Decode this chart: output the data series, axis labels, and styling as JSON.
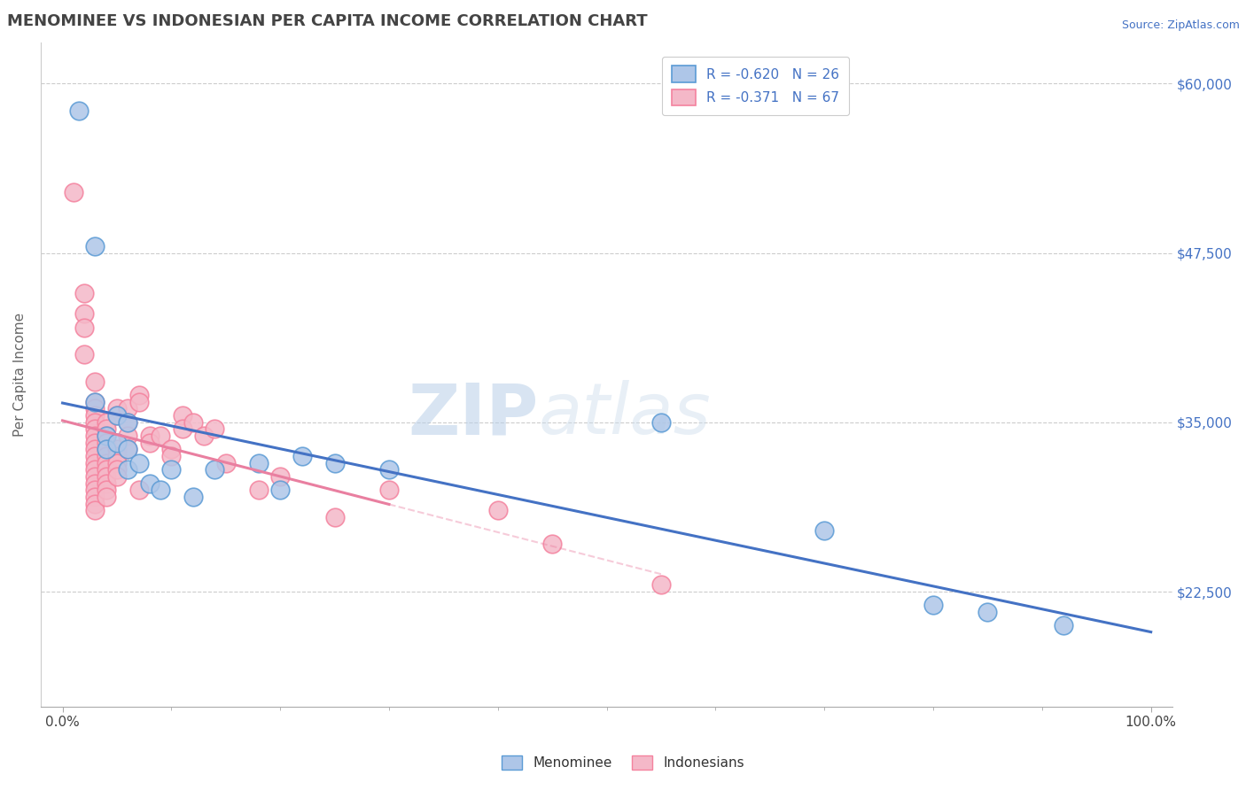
{
  "title": "MENOMINEE VS INDONESIAN PER CAPITA INCOME CORRELATION CHART",
  "source_text": "Source: ZipAtlas.com",
  "ylabel": "Per Capita Income",
  "xlim": [
    -2,
    102
  ],
  "ylim": [
    14000,
    63000
  ],
  "yticks": [
    22500,
    35000,
    47500,
    60000
  ],
  "ytick_labels": [
    "$22,500",
    "$35,000",
    "$47,500",
    "$60,000"
  ],
  "xticks": [
    0,
    100
  ],
  "xtick_labels": [
    "0.0%",
    "100.0%"
  ],
  "legend_entries": [
    {
      "label": "R = -0.620   N = 26",
      "color": "#aec6e8"
    },
    {
      "label": "R = -0.371   N = 67",
      "color": "#f4b8c8"
    }
  ],
  "legend_label_bottom": [
    "Menominee",
    "Indonesians"
  ],
  "watermark_zip": "ZIP",
  "watermark_atlas": "atlas",
  "background_color": "#ffffff",
  "grid_color": "#cccccc",
  "title_color": "#444444",
  "source_color": "#4472c4",
  "menominee_color": "#aec6e8",
  "indonesian_color": "#f4b8c8",
  "menominee_edge": "#5b9bd5",
  "indonesian_edge": "#f4829e",
  "reg_blue": "#4472c4",
  "reg_pink": "#e97fa0",
  "menominee_points": [
    [
      1.5,
      58000
    ],
    [
      3,
      48000
    ],
    [
      3,
      36500
    ],
    [
      4,
      34000
    ],
    [
      4,
      33000
    ],
    [
      5,
      35500
    ],
    [
      5,
      33500
    ],
    [
      6,
      35000
    ],
    [
      6,
      33000
    ],
    [
      6,
      31500
    ],
    [
      7,
      32000
    ],
    [
      8,
      30500
    ],
    [
      9,
      30000
    ],
    [
      10,
      31500
    ],
    [
      12,
      29500
    ],
    [
      14,
      31500
    ],
    [
      18,
      32000
    ],
    [
      20,
      30000
    ],
    [
      22,
      32500
    ],
    [
      25,
      32000
    ],
    [
      30,
      31500
    ],
    [
      55,
      35000
    ],
    [
      70,
      27000
    ],
    [
      80,
      21500
    ],
    [
      85,
      21000
    ],
    [
      92,
      20000
    ]
  ],
  "indonesian_points": [
    [
      1,
      52000
    ],
    [
      2,
      44500
    ],
    [
      2,
      43000
    ],
    [
      2,
      42000
    ],
    [
      2,
      40000
    ],
    [
      3,
      38000
    ],
    [
      3,
      36500
    ],
    [
      3,
      36000
    ],
    [
      3,
      35500
    ],
    [
      3,
      35000
    ],
    [
      3,
      34500
    ],
    [
      3,
      34000
    ],
    [
      3,
      33500
    ],
    [
      3,
      33000
    ],
    [
      3,
      32500
    ],
    [
      3,
      32000
    ],
    [
      3,
      31500
    ],
    [
      3,
      31000
    ],
    [
      3,
      30500
    ],
    [
      3,
      30000
    ],
    [
      3,
      29500
    ],
    [
      3,
      29000
    ],
    [
      3,
      28500
    ],
    [
      4,
      35000
    ],
    [
      4,
      34500
    ],
    [
      4,
      34000
    ],
    [
      4,
      33500
    ],
    [
      4,
      33000
    ],
    [
      4,
      32500
    ],
    [
      4,
      32000
    ],
    [
      4,
      31500
    ],
    [
      4,
      31000
    ],
    [
      4,
      30500
    ],
    [
      4,
      30000
    ],
    [
      4,
      29500
    ],
    [
      5,
      36000
    ],
    [
      5,
      35500
    ],
    [
      5,
      33000
    ],
    [
      5,
      32500
    ],
    [
      5,
      32000
    ],
    [
      5,
      31500
    ],
    [
      5,
      31000
    ],
    [
      6,
      36000
    ],
    [
      6,
      35000
    ],
    [
      6,
      34000
    ],
    [
      6,
      33000
    ],
    [
      7,
      37000
    ],
    [
      7,
      36500
    ],
    [
      7,
      30000
    ],
    [
      8,
      34000
    ],
    [
      8,
      33500
    ],
    [
      9,
      34000
    ],
    [
      10,
      33000
    ],
    [
      10,
      32500
    ],
    [
      11,
      35500
    ],
    [
      11,
      34500
    ],
    [
      12,
      35000
    ],
    [
      13,
      34000
    ],
    [
      14,
      34500
    ],
    [
      15,
      32000
    ],
    [
      18,
      30000
    ],
    [
      20,
      31000
    ],
    [
      25,
      28000
    ],
    [
      30,
      30000
    ],
    [
      40,
      28500
    ],
    [
      45,
      26000
    ],
    [
      55,
      23000
    ]
  ]
}
